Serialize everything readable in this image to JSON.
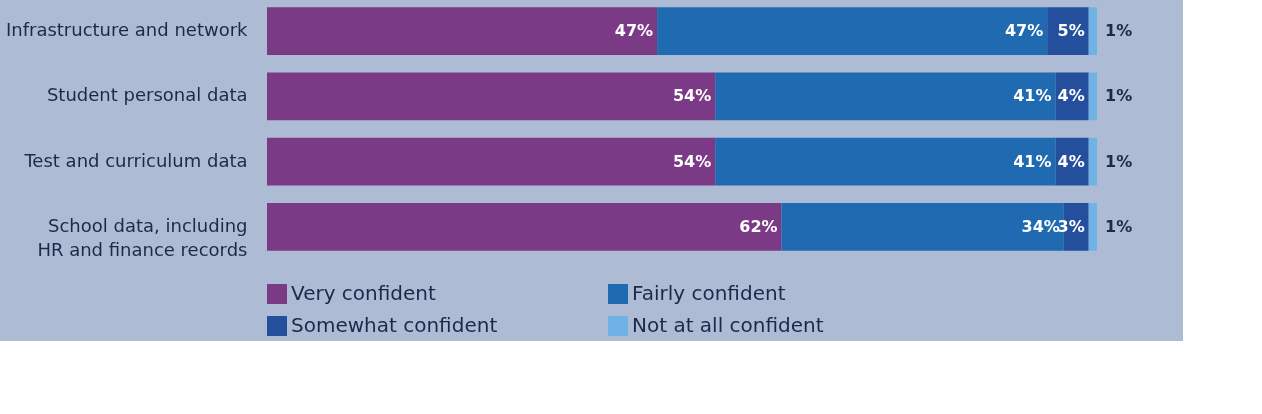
{
  "chart_data": {
    "type": "bar",
    "orientation": "horizontal",
    "stacked": true,
    "legend": "bottom",
    "categories": [
      "Infrastructure and network",
      "Student personal data",
      "Test and curriculum data",
      "School data, including\nHR and finance records"
    ],
    "series": [
      {
        "name": "Very confident",
        "color": "#7b3a86",
        "values": [
          47,
          54,
          54,
          62
        ],
        "value_labels": [
          "47%",
          "54%",
          "54%",
          "62%"
        ]
      },
      {
        "name": "Fairly confident",
        "color": "#1f6ab0",
        "values": [
          47,
          41,
          41,
          34
        ],
        "value_labels": [
          "47%",
          "41%",
          "41%",
          "34%"
        ]
      },
      {
        "name": "Somewhat confident",
        "color": "#234f9c",
        "values": [
          5,
          4,
          4,
          3
        ],
        "value_labels": [
          "5%",
          "4%",
          "4%",
          "3%"
        ]
      },
      {
        "name": "Not at all confident",
        "color": "#6fb3e6",
        "values": [
          1,
          1,
          1,
          1
        ],
        "value_labels": [
          "1%",
          "1%",
          "1%",
          "1%"
        ]
      }
    ]
  }
}
